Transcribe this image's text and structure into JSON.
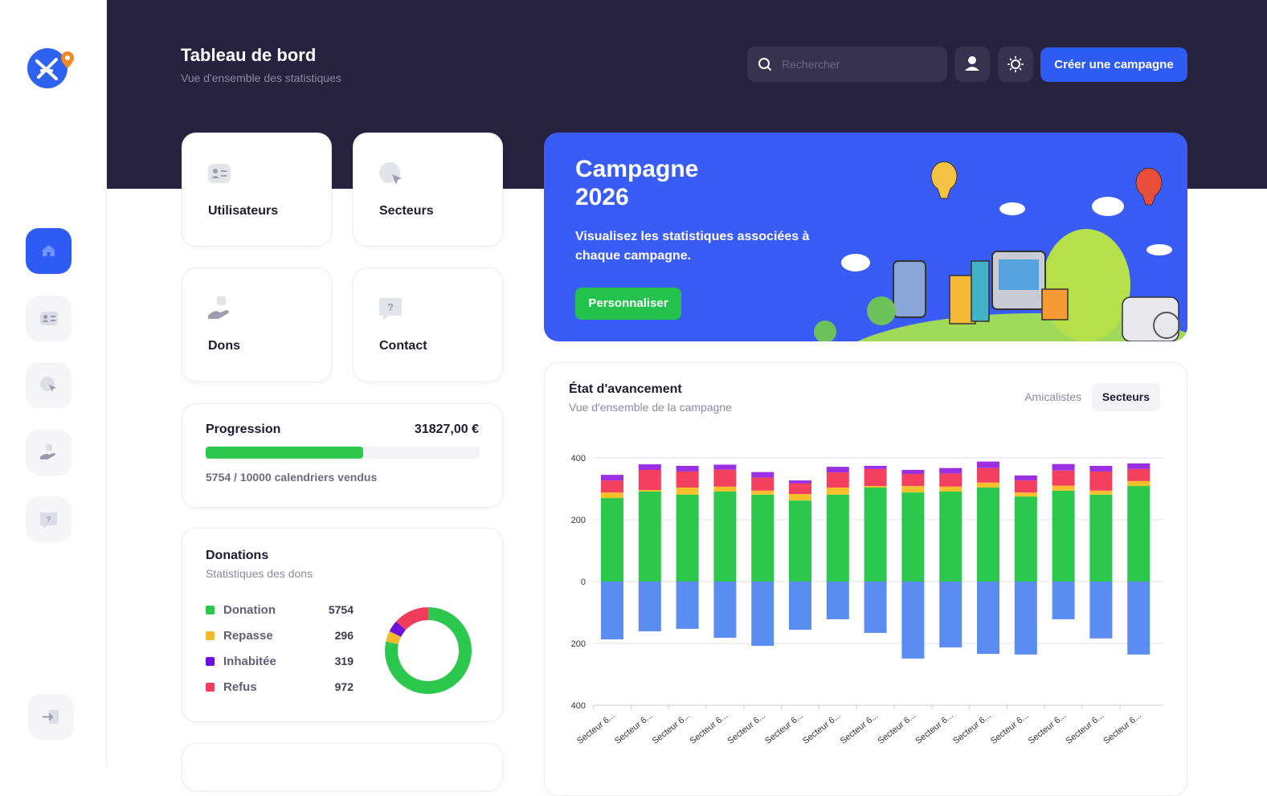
{
  "header": {
    "title": "Tableau de bord",
    "subtitle": "Vue d'ensemble des statistiques",
    "search_placeholder": "Rechercher",
    "create_button": "Créer une campagne"
  },
  "tiles": [
    "Utilisateurs",
    "Secteurs",
    "Dons",
    "Contact"
  ],
  "banner": {
    "title_lines": [
      "Campagne",
      "2026"
    ],
    "text": "Visualisez les statistiques associées à chaque campagne.",
    "button": "Personnaliser"
  },
  "progress": {
    "label": "Progression",
    "amount": "31827,00 €",
    "sold": 5754,
    "goal": 10000,
    "caption": "5754 / 10000 calendriers vendus"
  },
  "chart_data": [
    {
      "type": "donut",
      "title": "Donations",
      "subtitle": "Statistiques des dons",
      "categories": [
        "Donation",
        "Repasse",
        "Inhabitée",
        "Refus"
      ],
      "values": [
        5754,
        296,
        319,
        972
      ],
      "colors": [
        "#2bc84d",
        "#f2b92a",
        "#6a12dc",
        "#f23c5c"
      ]
    },
    {
      "type": "stacked-bar",
      "title": "État d'avancement",
      "subtitle": "Vue d'ensemble de la campagne",
      "tabs": [
        "Amicalistes",
        "Secteurs"
      ],
      "active_tab": 1,
      "categories": [
        "Secteur 6...",
        "Secteur 6...",
        "Secteur 6...",
        "Secteur 6...",
        "Secteur 6...",
        "Secteur 6...",
        "Secteur 6...",
        "Secteur 6...",
        "Secteur 6...",
        "Secteur 6...",
        "Secteur 6...",
        "Secteur 6...",
        "Secteur 6...",
        "Secteur 6...",
        "Secteur 6..."
      ],
      "series": [
        {
          "color": "#2bc84d",
          "values": [
            270,
            291,
            281,
            291,
            281,
            262,
            281,
            304,
            288,
            291,
            304,
            275,
            294,
            281,
            309
          ]
        },
        {
          "color": "#f5c02a",
          "values": [
            18,
            5,
            23,
            16,
            13,
            21,
            23,
            5,
            21,
            16,
            16,
            13,
            16,
            13,
            16
          ]
        },
        {
          "color": "#f43f5e",
          "values": [
            39,
            65,
            52,
            55,
            42,
            34,
            49,
            55,
            39,
            42,
            47,
            39,
            49,
            62,
            39
          ]
        },
        {
          "color": "#9b2fe4",
          "values": [
            18,
            18,
            18,
            16,
            18,
            10,
            18,
            10,
            13,
            18,
            21,
            16,
            21,
            18,
            18
          ]
        },
        {
          "color": "#5b8cf2",
          "values": [
            -187,
            -161,
            -153,
            -182,
            -208,
            -156,
            -122,
            -166,
            -249,
            -213,
            -234,
            -236,
            -122,
            -184,
            -236
          ]
        }
      ],
      "ylim": [
        -400,
        400
      ],
      "yticks": [
        {
          "value": -400,
          "label": "400"
        },
        {
          "value": -200,
          "label": "200"
        },
        0,
        200,
        400
      ],
      "grid": true
    }
  ]
}
